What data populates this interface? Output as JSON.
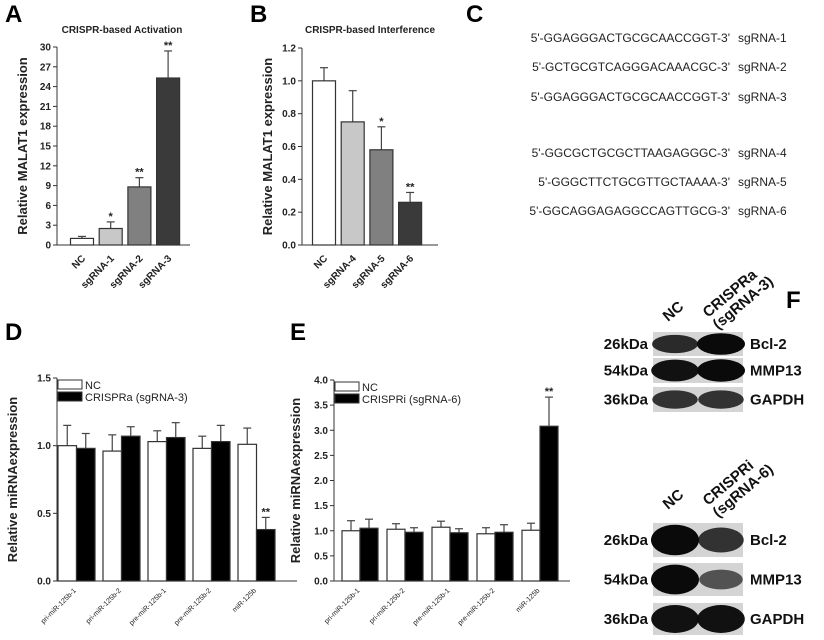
{
  "panel_labels": {
    "a": "A",
    "b": "B",
    "c": "C",
    "d": "D",
    "e": "E",
    "f": "F"
  },
  "chart_data": [
    {
      "id": "A",
      "type": "bar",
      "title": "CRISPR-based Activation",
      "ylabel": "Relative MALAT1 expression",
      "xlabel": "",
      "categories": [
        "NC",
        "sgRNA-1",
        "sgRNA-2",
        "sgRNA-3"
      ],
      "values": [
        1.0,
        2.5,
        8.8,
        25.3
      ],
      "errors": [
        0.3,
        1.0,
        1.4,
        4.1
      ],
      "significance": [
        "",
        "*",
        "**",
        "**"
      ],
      "colors": [
        "#ffffff",
        "#c8c8c8",
        "#808080",
        "#3a3a3a"
      ],
      "ylim": [
        0,
        30
      ],
      "yticks": [
        0,
        3,
        6,
        9,
        12,
        15,
        18,
        21,
        24,
        27,
        30
      ]
    },
    {
      "id": "B",
      "type": "bar",
      "title": "CRISPR-based Interference",
      "ylabel": "Relative MALAT1 expression",
      "xlabel": "",
      "categories": [
        "NC",
        "sgRNA-4",
        "sgRNA-5",
        "sgRNA-6"
      ],
      "values": [
        1.0,
        0.75,
        0.58,
        0.26
      ],
      "errors": [
        0.08,
        0.19,
        0.14,
        0.06
      ],
      "significance": [
        "",
        "",
        "*",
        "**"
      ],
      "colors": [
        "#ffffff",
        "#c8c8c8",
        "#808080",
        "#3a3a3a"
      ],
      "ylim": [
        0,
        1.2
      ],
      "yticks": [
        "0.0",
        "0.2",
        "0.4",
        "0.6",
        "0.8",
        "1.0",
        "1.2"
      ]
    },
    {
      "id": "D",
      "type": "bar",
      "title": "",
      "ylabel": "Relative miRNAexpression",
      "xlabel": "",
      "categories": [
        "pri-miR-125b-1",
        "pri-miR-125b-2",
        "pre-miR-125b-1",
        "pre-miR-125b-2",
        "miR-125b"
      ],
      "series": [
        {
          "name": "NC",
          "color": "#ffffff",
          "values": [
            1.0,
            0.96,
            1.03,
            0.98,
            1.01
          ],
          "errors": [
            0.15,
            0.12,
            0.08,
            0.09,
            0.12
          ],
          "significance": [
            "",
            "",
            "",
            "",
            ""
          ]
        },
        {
          "name": "CRISPRa (sgRNA-3)",
          "color": "#000000",
          "values": [
            0.98,
            1.07,
            1.06,
            1.03,
            0.38
          ],
          "errors": [
            0.11,
            0.07,
            0.11,
            0.12,
            0.09
          ],
          "significance": [
            "",
            "",
            "",
            "",
            "**"
          ]
        }
      ],
      "legend": "top-left",
      "ylim": [
        0,
        1.5
      ],
      "yticks": [
        "0.0",
        "0.5",
        "1.0",
        "1.5"
      ]
    },
    {
      "id": "E",
      "type": "bar",
      "title": "",
      "ylabel": "Relative miRNAexpression",
      "xlabel": "",
      "categories": [
        "pri-miR-125b-1",
        "pri-miR-125b-2",
        "pre-miR-125b-1",
        "pre-miR-125b-2",
        "miR-125b"
      ],
      "series": [
        {
          "name": "NC",
          "color": "#ffffff",
          "values": [
            1.0,
            1.03,
            1.07,
            0.94,
            1.01
          ],
          "errors": [
            0.2,
            0.11,
            0.12,
            0.12,
            0.14
          ],
          "significance": [
            "",
            "",
            "",
            "",
            ""
          ]
        },
        {
          "name": "CRISPRi (sgRNA-6)",
          "color": "#000000",
          "values": [
            1.05,
            0.97,
            0.96,
            0.97,
            3.08
          ],
          "errors": [
            0.18,
            0.09,
            0.08,
            0.15,
            0.58
          ],
          "significance": [
            "",
            "",
            "",
            "",
            "**"
          ]
        }
      ],
      "legend": "top-left",
      "ylim": [
        0,
        4
      ],
      "yticks": [
        "0.0",
        "0.5",
        "1.0",
        "1.5",
        "2.0",
        "2.5",
        "3.0",
        "3.5",
        "4.0"
      ]
    }
  ],
  "sequences": [
    {
      "seq": "5'-GGAGGGACTGCGCAACCGGT-3'",
      "name": "sgRNA-1"
    },
    {
      "seq": "5'-GCTGCGTCAGGGACAAACGC-3'",
      "name": "sgRNA-2"
    },
    {
      "seq": "5'-GGAGGGACTGCGCAACCGGT-3'",
      "name": "sgRNA-3"
    },
    {
      "seq": "5'-GGCGCTGCGCTTAAGAGGGC-3'",
      "name": "sgRNA-4"
    },
    {
      "seq": "5'-GGGCTTCTGCGTTGCTAAAA-3'",
      "name": "sgRNA-5"
    },
    {
      "seq": "5'-GGCAGGAGAGGCCAGTTGCG-3'",
      "name": "sgRNA-6"
    }
  ],
  "blots": [
    {
      "lanes": [
        "NC",
        "CRISPRa",
        "(sgRNA-3)"
      ],
      "rows": [
        {
          "kda": "26kDa",
          "protein": "Bcl-2",
          "intensity": [
            0.75,
            1.0
          ]
        },
        {
          "kda": "54kDa",
          "protein": "MMP13",
          "intensity": [
            0.95,
            1.0
          ]
        },
        {
          "kda": "36kDa",
          "protein": "GAPDH",
          "intensity": [
            0.7,
            0.7
          ]
        }
      ]
    },
    {
      "lanes": [
        "NC",
        "CRISPRi",
        "(sgRNA-6)"
      ],
      "rows": [
        {
          "kda": "26kDa",
          "protein": "Bcl-2",
          "intensity": [
            1.0,
            0.7
          ]
        },
        {
          "kda": "54kDa",
          "protein": "MMP13",
          "intensity": [
            1.0,
            0.45
          ]
        },
        {
          "kda": "36kDa",
          "protein": "GAPDH",
          "intensity": [
            0.95,
            0.95
          ]
        }
      ]
    }
  ]
}
